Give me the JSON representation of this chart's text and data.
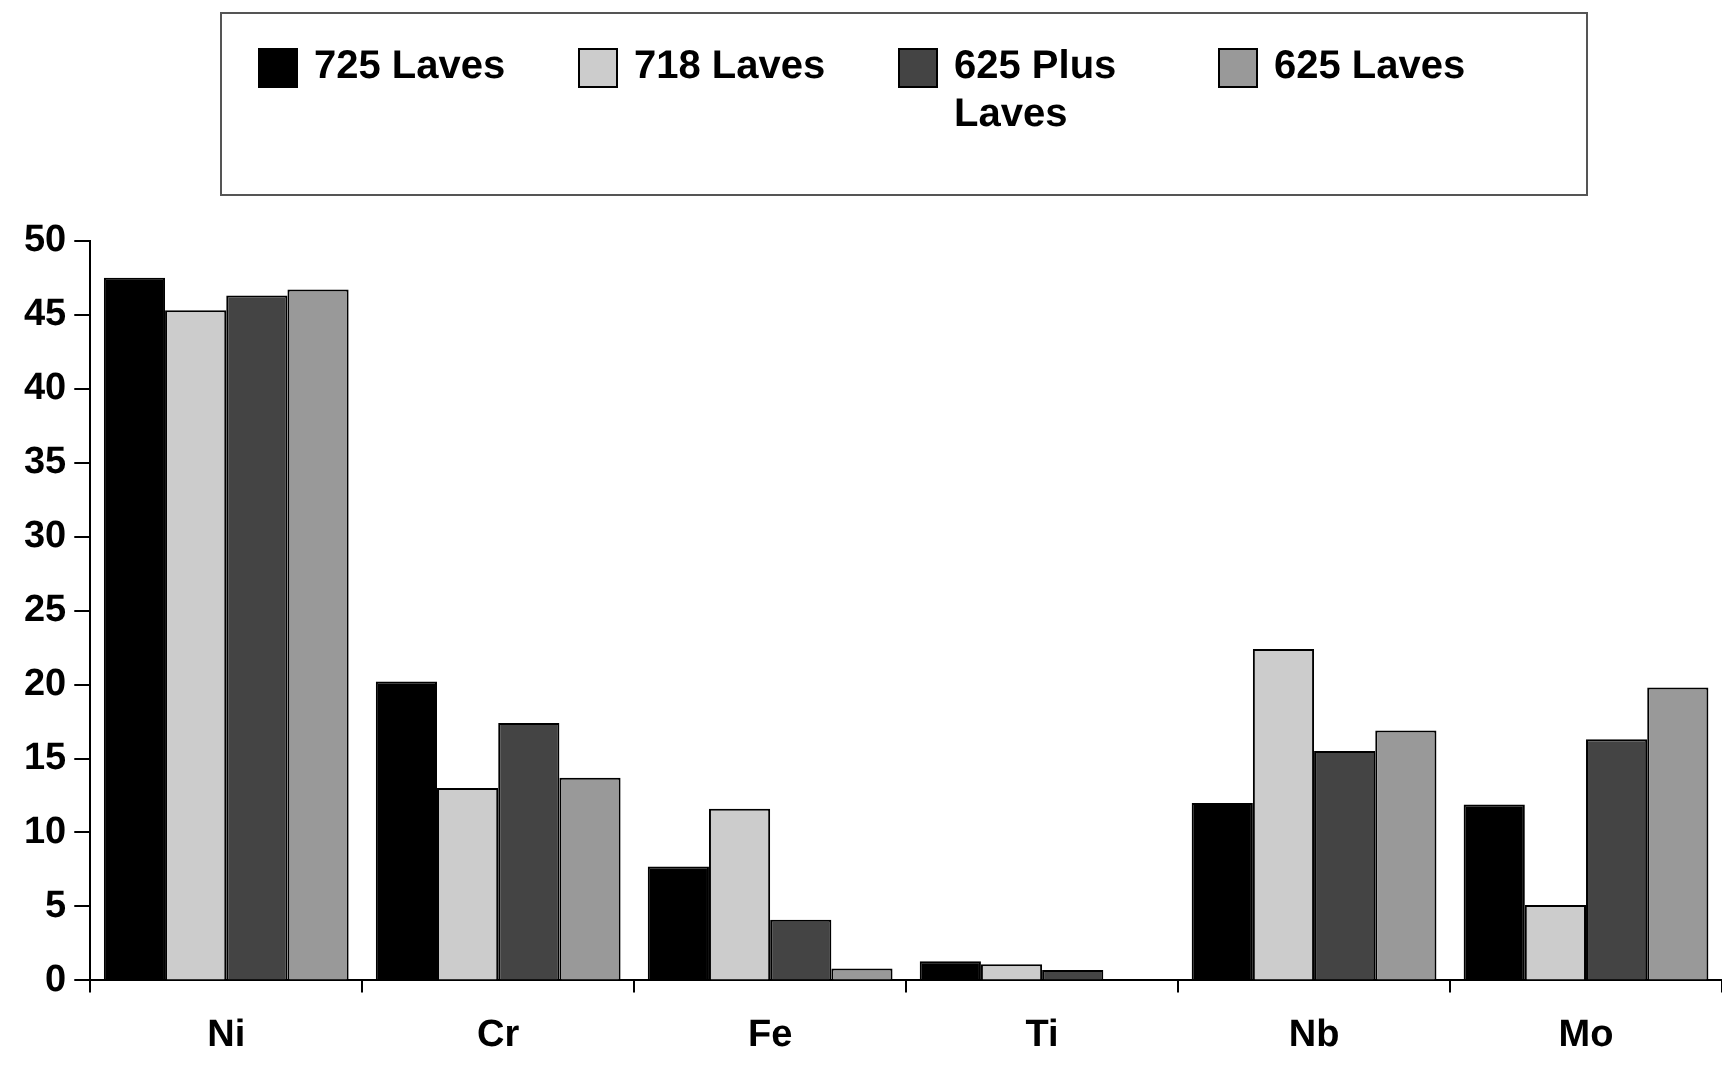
{
  "chart_data": {
    "type": "bar",
    "categories": [
      "Ni",
      "Cr",
      "Fe",
      "Ti",
      "Nb",
      "Mo"
    ],
    "series": [
      {
        "name": "725 Laves",
        "color": "#000000",
        "values": [
          47.5,
          20.2,
          7.7,
          1.3,
          12.0,
          11.9
        ]
      },
      {
        "name": "718 Laves",
        "color": "#cccccc",
        "values": [
          45.3,
          13.0,
          11.6,
          1.1,
          22.4,
          5.1
        ]
      },
      {
        "name": "625 Plus Laves",
        "color": "#444444",
        "values": [
          46.3,
          17.4,
          4.1,
          0.7,
          15.5,
          16.3
        ]
      },
      {
        "name": "625 Laves",
        "color": "#999999",
        "values": [
          46.7,
          13.7,
          0.8,
          0,
          16.9,
          19.8
        ]
      }
    ],
    "ylim": [
      0,
      50
    ],
    "yticks": [
      0,
      5,
      10,
      15,
      20,
      25,
      30,
      35,
      40,
      45,
      50
    ],
    "grid": false,
    "legend": "top"
  }
}
